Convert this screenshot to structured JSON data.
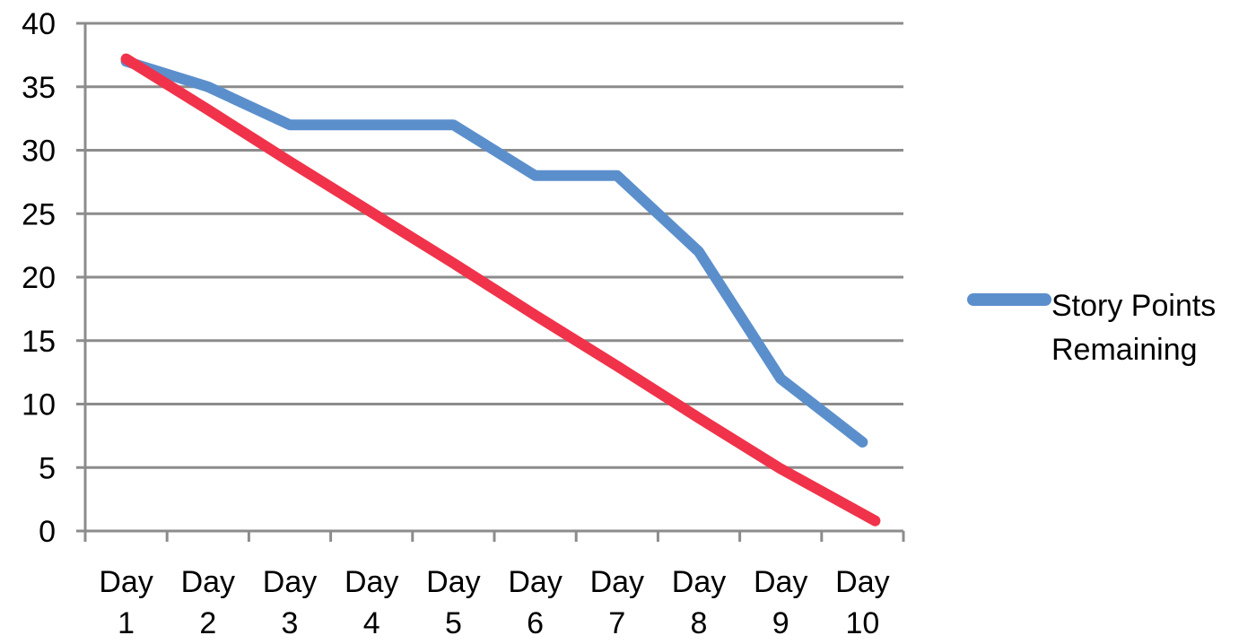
{
  "chart_data": {
    "type": "line",
    "categories": [
      [
        "Day",
        "1"
      ],
      [
        "Day",
        "2"
      ],
      [
        "Day",
        "3"
      ],
      [
        "Day",
        "4"
      ],
      [
        "Day",
        "5"
      ],
      [
        "Day",
        "6"
      ],
      [
        "Day",
        "7"
      ],
      [
        "Day",
        "8"
      ],
      [
        "Day",
        "9"
      ],
      [
        "Day",
        "10"
      ]
    ],
    "ylim": [
      0,
      40
    ],
    "yticks": [
      "0",
      "5",
      "10",
      "15",
      "20",
      "25",
      "30",
      "35",
      "40"
    ],
    "grid": true,
    "legend": {
      "placement": "right",
      "lines": [
        "Story Points",
        "Remaining"
      ]
    },
    "series": [
      {
        "name": "Story Points Remaining",
        "color": "#5b8fcc",
        "values": [
          37,
          35,
          32,
          32,
          32,
          28,
          28,
          22,
          12,
          7
        ]
      },
      {
        "color": "#f0334a",
        "values": [
          37.2,
          33.2,
          29.1,
          25.1,
          21.1,
          17.0,
          13.0,
          8.9,
          4.9,
          0.8
        ]
      }
    ]
  }
}
